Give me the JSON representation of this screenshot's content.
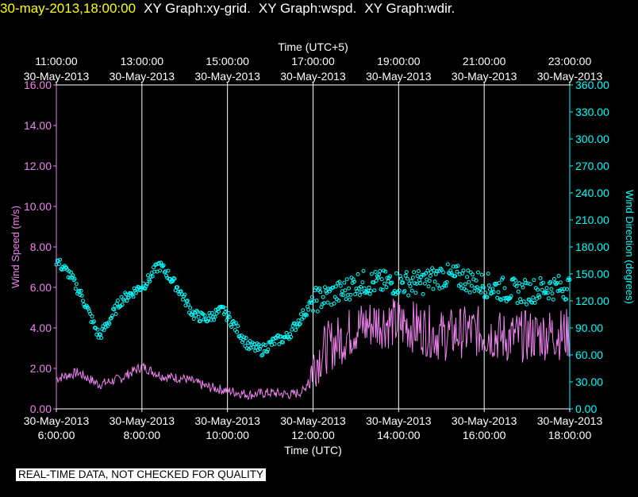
{
  "header": {
    "timestamp": "30-may-2013,18:00:00",
    "graphs": [
      "XY Graph:xy-grid.",
      "XY Graph:wspd.",
      "XY Graph:wdir."
    ]
  },
  "footer": {
    "disclaimer": "REAL-TIME DATA, NOT CHECKED FOR QUALITY"
  },
  "colors": {
    "background": "#000000",
    "wind_speed": "#ee82ee",
    "wind_direction": "#00ffff",
    "grid": "#ffffff",
    "timestamp": "#ffff00"
  },
  "chart_data": {
    "type": "line+scatter",
    "grid": true,
    "top_axis": {
      "label": "Time (UTC+5)",
      "ticks": [
        {
          "time": "11:00:00",
          "date": "30-May-2013"
        },
        {
          "time": "13:00:00",
          "date": "30-May-2013"
        },
        {
          "time": "15:00:00",
          "date": "30-May-2013"
        },
        {
          "time": "17:00:00",
          "date": "30-May-2013"
        },
        {
          "time": "19:00:00",
          "date": "30-May-2013"
        },
        {
          "time": "21:00:00",
          "date": "30-May-2013"
        },
        {
          "time": "23:00:00",
          "date": "30-May-2013"
        }
      ]
    },
    "bottom_axis": {
      "label": "Time (UTC)",
      "range": [
        "30-May-2013 06:00",
        "30-May-2013 18:00"
      ],
      "ticks": [
        {
          "date": "30-May-2013",
          "time": "6:00:00"
        },
        {
          "date": "30-May-2013",
          "time": "8:00:00"
        },
        {
          "date": "30-May-2013",
          "time": "10:00:00"
        },
        {
          "date": "30-May-2013",
          "time": "12:00:00"
        },
        {
          "date": "30-May-2013",
          "time": "14:00:00"
        },
        {
          "date": "30-May-2013",
          "time": "16:00:00"
        },
        {
          "date": "30-May-2013",
          "time": "18:00:00"
        }
      ]
    },
    "left_axis": {
      "label": "Wind Speed (m/s)",
      "ylim": [
        0,
        16
      ],
      "ticks": [
        "0.00",
        "2.00",
        "4.00",
        "6.00",
        "8.00",
        "10.00",
        "12.00",
        "14.00",
        "16.00"
      ]
    },
    "right_axis": {
      "label": "Wind Direction (degrees)",
      "ylim": [
        0,
        360
      ],
      "ticks": [
        "0.00",
        "30.00",
        "60.00",
        "90.00",
        "120.00",
        "150.00",
        "180.00",
        "210.00",
        "240.00",
        "270.00",
        "300.00",
        "330.00",
        "360.00"
      ]
    },
    "series": [
      {
        "name": "Wind Speed (m/s)",
        "type": "line",
        "x_hours_utc": [
          6.0,
          6.5,
          7.0,
          7.5,
          8.0,
          8.5,
          9.0,
          9.5,
          10.0,
          10.5,
          11.0,
          11.5,
          11.8,
          12.0,
          12.3,
          12.7,
          13.0,
          13.5,
          14.0,
          14.5,
          15.0,
          15.5,
          16.0,
          16.5,
          17.0,
          17.5,
          18.0
        ],
        "values": [
          1.5,
          1.8,
          1.2,
          1.5,
          2.1,
          1.6,
          1.5,
          1.1,
          0.9,
          0.7,
          0.8,
          0.7,
          0.9,
          2.2,
          3.0,
          3.5,
          4.0,
          4.3,
          4.2,
          4.0,
          3.6,
          3.8,
          3.8,
          3.5,
          3.6,
          3.7,
          3.7
        ]
      },
      {
        "name": "Wind Direction (degrees)",
        "type": "scatter",
        "x_hours_utc": [
          6.0,
          6.3,
          6.6,
          7.0,
          7.2,
          7.5,
          7.8,
          8.1,
          8.4,
          8.6,
          8.9,
          9.2,
          9.5,
          9.9,
          10.2,
          10.5,
          10.8,
          11.1,
          11.4,
          11.7,
          12.0,
          12.3,
          12.7,
          13.0,
          13.5,
          14.0,
          14.5,
          15.0,
          15.5,
          16.0,
          16.5,
          17.0,
          17.5,
          18.0
        ],
        "values": [
          165,
          150,
          125,
          80,
          95,
          120,
          130,
          140,
          160,
          150,
          130,
          105,
          100,
          110,
          90,
          70,
          65,
          75,
          80,
          100,
          120,
          125,
          130,
          140,
          140,
          140,
          140,
          148,
          145,
          138,
          132,
          130,
          135,
          135
        ]
      }
    ]
  }
}
